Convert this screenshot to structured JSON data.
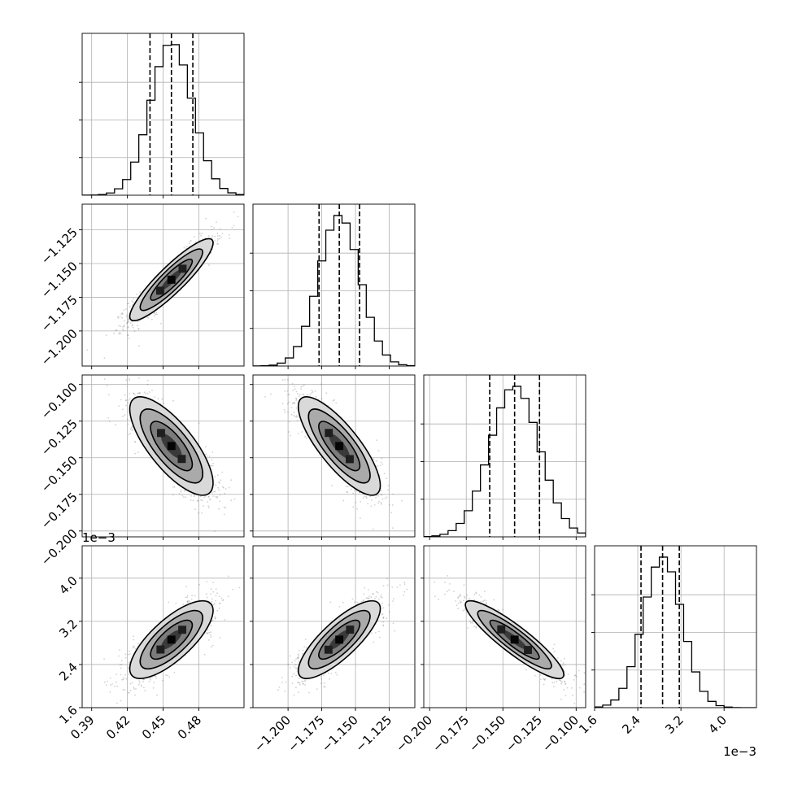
{
  "chart_data": {
    "type": "corner",
    "parameters": [
      {
        "ticks": [
          0.39,
          0.42,
          0.45,
          0.48
        ],
        "tick_labels": [
          "0.39",
          "0.42",
          "0.45",
          "0.48"
        ],
        "range": [
          0.382,
          0.518
        ],
        "mean": 0.457,
        "sigma": 0.0175,
        "quantiles": [
          0.439,
          0.457,
          0.475
        ]
      },
      {
        "ticks": [
          -1.2,
          -1.175,
          -1.15,
          -1.125
        ],
        "tick_labels": [
          "−1.200",
          "−1.175",
          "−1.150",
          "−1.125"
        ],
        "range": [
          -1.226,
          -1.106
        ],
        "mean": -1.162,
        "sigma": 0.0152,
        "quantiles": [
          -1.177,
          -1.162,
          -1.147
        ]
      },
      {
        "ticks": [
          -0.2,
          -0.175,
          -0.15,
          -0.125,
          -0.1
        ],
        "tick_labels": [
          "−0.200",
          "−0.175",
          "−0.150",
          "−0.125",
          "−0.100"
        ],
        "range": [
          -0.204,
          -0.0935
        ],
        "mean": -0.142,
        "sigma": 0.0168,
        "quantiles": [
          -0.159,
          -0.142,
          -0.125
        ]
      },
      {
        "ticks": [
          1.6,
          2.4,
          3.2,
          4.0
        ],
        "tick_labels": [
          "1.6",
          "2.4",
          "3.2",
          "4.0"
        ],
        "range": [
          1.6,
          4.6
        ],
        "mean": 2.86,
        "sigma": 0.36,
        "quantiles": [
          2.46,
          2.86,
          3.17
        ]
      }
    ],
    "offset_label_x": "1e−3",
    "offset_label_y": "1e−3",
    "correlations": [
      [
        1,
        0.9,
        -0.75,
        0.75
      ],
      [
        0.9,
        1,
        -0.8,
        0.8
      ],
      [
        -0.75,
        -0.8,
        1,
        -0.9
      ],
      [
        0.75,
        0.8,
        -0.9,
        1
      ]
    ],
    "contour_levels": [
      "0.5σ",
      "1σ",
      "1.5σ",
      "2σ"
    ],
    "grid": true,
    "bins": 20
  }
}
